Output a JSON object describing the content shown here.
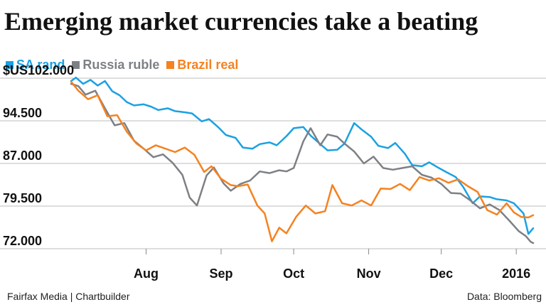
{
  "title": "Emerging market currencies take a beating",
  "footer": {
    "credit": "Fairfax Media | Chartbuilder",
    "source": "Data: Bloomberg"
  },
  "colors": {
    "sa_rand": "#1ba1e2",
    "russia_ruble": "#7d8085",
    "brazil_real": "#f58220"
  },
  "chart_data": {
    "type": "line",
    "title": "Emerging market currencies take a beating",
    "ylim": [
      72,
      102
    ],
    "yticks": [
      102,
      94.5,
      87,
      79.5,
      72
    ],
    "ytick_labels": [
      "$US102.000",
      "94.500",
      "87.000",
      "79.500",
      "72.000"
    ],
    "x_range": [
      "2015-07-01",
      "2016-01-08"
    ],
    "xticks": [
      {
        "date": "2015-08-01",
        "label": "Aug"
      },
      {
        "date": "2015-09-01",
        "label": "Sep"
      },
      {
        "date": "2015-10-01",
        "label": "Oct"
      },
      {
        "date": "2015-11-01",
        "label": "Nov"
      },
      {
        "date": "2015-12-01",
        "label": "Dec"
      },
      {
        "date": "2016-01-01",
        "label": "2016"
      }
    ],
    "legend_position": "top-left",
    "grid": true,
    "series": [
      {
        "name": "SA rand",
        "color": "#1ba1e2",
        "points": [
          [
            "2015-07-01",
            101.5
          ],
          [
            "2015-07-03",
            102.1
          ],
          [
            "2015-07-06",
            101.0
          ],
          [
            "2015-07-09",
            101.7
          ],
          [
            "2015-07-12",
            100.7
          ],
          [
            "2015-07-15",
            101.5
          ],
          [
            "2015-07-18",
            99.7
          ],
          [
            "2015-07-21",
            99.0
          ],
          [
            "2015-07-24",
            97.8
          ],
          [
            "2015-07-27",
            97.2
          ],
          [
            "2015-07-31",
            97.4
          ],
          [
            "2015-08-03",
            97.0
          ],
          [
            "2015-08-06",
            96.4
          ],
          [
            "2015-08-10",
            96.7
          ],
          [
            "2015-08-13",
            96.2
          ],
          [
            "2015-08-17",
            96.0
          ],
          [
            "2015-08-20",
            95.8
          ],
          [
            "2015-08-24",
            94.4
          ],
          [
            "2015-08-27",
            94.8
          ],
          [
            "2015-08-31",
            93.3
          ],
          [
            "2015-09-03",
            92.0
          ],
          [
            "2015-09-07",
            91.5
          ],
          [
            "2015-09-10",
            89.8
          ],
          [
            "2015-09-14",
            89.6
          ],
          [
            "2015-09-17",
            90.4
          ],
          [
            "2015-09-21",
            90.7
          ],
          [
            "2015-09-24",
            90.2
          ],
          [
            "2015-09-28",
            91.8
          ],
          [
            "2015-10-01",
            93.2
          ],
          [
            "2015-10-05",
            93.4
          ],
          [
            "2015-10-08",
            91.9
          ],
          [
            "2015-10-12",
            90.4
          ],
          [
            "2015-10-15",
            89.3
          ],
          [
            "2015-10-19",
            89.4
          ],
          [
            "2015-10-22",
            90.5
          ],
          [
            "2015-10-26",
            94.1
          ],
          [
            "2015-10-29",
            93.0
          ],
          [
            "2015-11-02",
            91.7
          ],
          [
            "2015-11-05",
            90.1
          ],
          [
            "2015-11-09",
            89.7
          ],
          [
            "2015-11-12",
            90.6
          ],
          [
            "2015-11-16",
            88.7
          ],
          [
            "2015-11-19",
            86.7
          ],
          [
            "2015-11-23",
            86.5
          ],
          [
            "2015-11-26",
            87.2
          ],
          [
            "2015-11-30",
            86.2
          ],
          [
            "2015-12-03",
            85.5
          ],
          [
            "2015-12-07",
            84.6
          ],
          [
            "2015-12-10",
            82.9
          ],
          [
            "2015-12-14",
            80.0
          ],
          [
            "2015-12-17",
            81.2
          ],
          [
            "2015-12-21",
            81.1
          ],
          [
            "2015-12-24",
            80.7
          ],
          [
            "2015-12-28",
            80.5
          ],
          [
            "2015-12-31",
            80.0
          ],
          [
            "2016-01-04",
            78.2
          ],
          [
            "2016-01-06",
            74.6
          ],
          [
            "2016-01-08",
            75.6
          ]
        ]
      },
      {
        "name": "Russia ruble",
        "color": "#7d8085",
        "points": [
          [
            "2015-07-01",
            101.0
          ],
          [
            "2015-07-04",
            100.6
          ],
          [
            "2015-07-07",
            99.1
          ],
          [
            "2015-07-11",
            99.8
          ],
          [
            "2015-07-15",
            96.7
          ],
          [
            "2015-07-19",
            93.7
          ],
          [
            "2015-07-23",
            94.1
          ],
          [
            "2015-07-27",
            91.0
          ],
          [
            "2015-07-31",
            89.6
          ],
          [
            "2015-08-04",
            88.1
          ],
          [
            "2015-08-08",
            88.6
          ],
          [
            "2015-08-12",
            87.1
          ],
          [
            "2015-08-16",
            85.0
          ],
          [
            "2015-08-19",
            81.0
          ],
          [
            "2015-08-22",
            79.6
          ],
          [
            "2015-08-26",
            84.9
          ],
          [
            "2015-08-29",
            86.3
          ],
          [
            "2015-09-02",
            83.5
          ],
          [
            "2015-09-05",
            82.2
          ],
          [
            "2015-09-09",
            83.4
          ],
          [
            "2015-09-13",
            84.0
          ],
          [
            "2015-09-17",
            85.6
          ],
          [
            "2015-09-21",
            85.3
          ],
          [
            "2015-09-25",
            85.8
          ],
          [
            "2015-09-28",
            85.6
          ],
          [
            "2015-10-01",
            86.2
          ],
          [
            "2015-10-05",
            90.9
          ],
          [
            "2015-10-08",
            93.2
          ],
          [
            "2015-10-12",
            90.2
          ],
          [
            "2015-10-15",
            92.1
          ],
          [
            "2015-10-19",
            91.7
          ],
          [
            "2015-10-22",
            90.5
          ],
          [
            "2015-10-26",
            89.1
          ],
          [
            "2015-10-30",
            87.0
          ],
          [
            "2015-11-03",
            88.2
          ],
          [
            "2015-11-07",
            86.2
          ],
          [
            "2015-11-11",
            85.9
          ],
          [
            "2015-11-15",
            86.2
          ],
          [
            "2015-11-19",
            86.5
          ],
          [
            "2015-11-23",
            85.0
          ],
          [
            "2015-11-27",
            84.5
          ],
          [
            "2015-12-01",
            83.4
          ],
          [
            "2015-12-05",
            81.8
          ],
          [
            "2015-12-09",
            81.7
          ],
          [
            "2015-12-13",
            80.5
          ],
          [
            "2015-12-17",
            79.1
          ],
          [
            "2015-12-21",
            79.8
          ],
          [
            "2015-12-25",
            78.8
          ],
          [
            "2015-12-29",
            77.0
          ],
          [
            "2016-01-02",
            75.1
          ],
          [
            "2016-01-05",
            74.2
          ],
          [
            "2016-01-07",
            73.2
          ],
          [
            "2016-01-08",
            73.0
          ]
        ]
      },
      {
        "name": "Brazil real",
        "color": "#f58220",
        "points": [
          [
            "2015-07-01",
            101.4
          ],
          [
            "2015-07-04",
            99.8
          ],
          [
            "2015-07-08",
            98.3
          ],
          [
            "2015-07-12",
            99.0
          ],
          [
            "2015-07-16",
            95.3
          ],
          [
            "2015-07-20",
            95.5
          ],
          [
            "2015-07-24",
            92.6
          ],
          [
            "2015-07-28",
            90.5
          ],
          [
            "2015-08-01",
            89.3
          ],
          [
            "2015-08-05",
            90.2
          ],
          [
            "2015-08-09",
            89.6
          ],
          [
            "2015-08-13",
            89.0
          ],
          [
            "2015-08-17",
            89.8
          ],
          [
            "2015-08-21",
            88.5
          ],
          [
            "2015-08-25",
            85.5
          ],
          [
            "2015-08-28",
            86.5
          ],
          [
            "2015-09-01",
            84.3
          ],
          [
            "2015-09-05",
            83.2
          ],
          [
            "2015-09-08",
            83.0
          ],
          [
            "2015-09-12",
            83.3
          ],
          [
            "2015-09-16",
            79.6
          ],
          [
            "2015-09-19",
            78.2
          ],
          [
            "2015-09-22",
            73.3
          ],
          [
            "2015-09-25",
            75.7
          ],
          [
            "2015-09-28",
            74.7
          ],
          [
            "2015-10-02",
            77.6
          ],
          [
            "2015-10-06",
            79.6
          ],
          [
            "2015-10-10",
            78.2
          ],
          [
            "2015-10-14",
            78.6
          ],
          [
            "2015-10-17",
            83.2
          ],
          [
            "2015-10-21",
            80.0
          ],
          [
            "2015-10-25",
            79.6
          ],
          [
            "2015-10-29",
            80.5
          ],
          [
            "2015-11-02",
            79.6
          ],
          [
            "2015-11-06",
            82.6
          ],
          [
            "2015-11-10",
            82.5
          ],
          [
            "2015-11-14",
            83.4
          ],
          [
            "2015-11-18",
            82.3
          ],
          [
            "2015-11-22",
            84.6
          ],
          [
            "2015-11-26",
            84.0
          ],
          [
            "2015-11-30",
            84.4
          ],
          [
            "2015-12-04",
            83.6
          ],
          [
            "2015-12-08",
            84.2
          ],
          [
            "2015-12-12",
            83.0
          ],
          [
            "2015-12-16",
            82.0
          ],
          [
            "2015-12-20",
            78.8
          ],
          [
            "2015-12-24",
            78.0
          ],
          [
            "2015-12-28",
            80.0
          ],
          [
            "2015-12-31",
            78.4
          ],
          [
            "2016-01-03",
            77.6
          ],
          [
            "2016-01-06",
            77.5
          ],
          [
            "2016-01-08",
            77.9
          ]
        ]
      }
    ]
  }
}
